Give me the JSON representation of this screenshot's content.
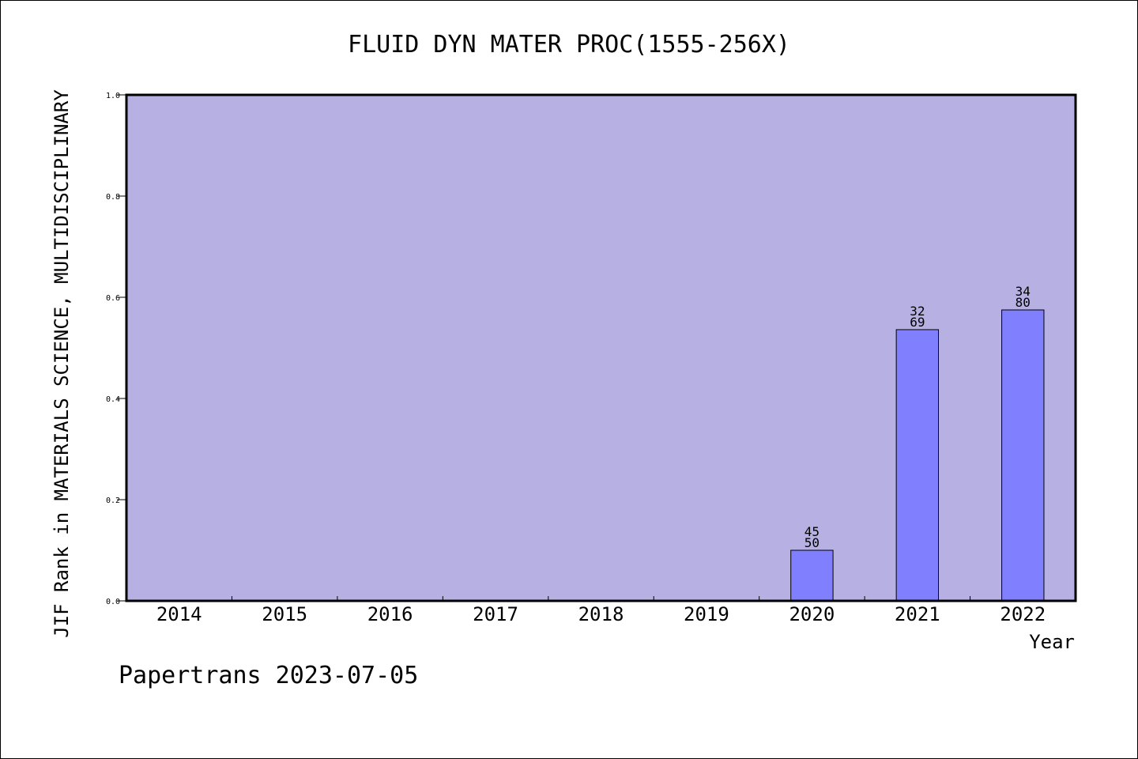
{
  "chart_data": {
    "type": "bar",
    "title": "FLUID DYN MATER PROC(1555-256X)",
    "ylabel": "JIF Rank in MATERIALS SCIENCE, MULTIDISCIPLINARY",
    "xlabel": "Year",
    "categories": [
      "2014",
      "2015",
      "2016",
      "2017",
      "2018",
      "2019",
      "2020",
      "2021",
      "2022"
    ],
    "values": [
      null,
      null,
      null,
      null,
      null,
      null,
      0.1,
      0.536,
      0.575
    ],
    "bar_labels": [
      null,
      null,
      null,
      null,
      null,
      null,
      [
        "45",
        "50"
      ],
      [
        "32",
        "69"
      ],
      [
        "34",
        "80"
      ]
    ],
    "ylim": [
      0,
      1.0
    ],
    "yticks": [
      "0.0",
      "0.2",
      "0.4",
      "0.6",
      "0.8",
      "1.0"
    ],
    "grid": false,
    "colors": {
      "plot_background": "#b6b0e3",
      "bar_fill": "#8080ff",
      "bar_stroke": "#000000"
    }
  },
  "footer": {
    "text": "Papertrans 2023-07-05"
  }
}
